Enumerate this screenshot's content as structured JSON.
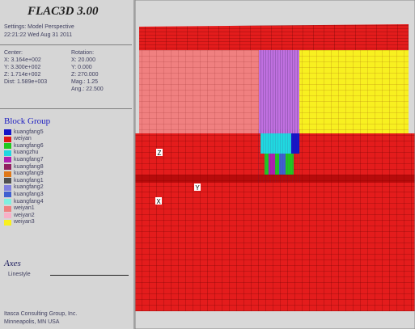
{
  "header": {
    "title": "FLAC3D 3.00",
    "settings": "Settings: Model Perspective",
    "timestamp": "22:21:22 Wed Aug 31 2011"
  },
  "view": {
    "center": {
      "label": "Center:",
      "x": "X: 3.164e+002",
      "y": "Y: 3.300e+002",
      "z": "Z: 1.714e+002",
      "dist": "Dist: 1.589e+003"
    },
    "rotation": {
      "label": "Rotation:",
      "x": "X: 20.000",
      "y": "Y: 0.000",
      "z": "Z: 270.000",
      "mag": "Mag.: 1.25",
      "ang": "Ang.: 22.500"
    }
  },
  "legend": {
    "title": "Block Group",
    "items": [
      {
        "name": "kuangfang5",
        "color": "#1414c8"
      },
      {
        "name": "weiyan",
        "color": "#e01818"
      },
      {
        "name": "kuangfang6",
        "color": "#20c820"
      },
      {
        "name": "kuangzhu",
        "color": "#20d8e0"
      },
      {
        "name": "kuangfang7",
        "color": "#b020b0"
      },
      {
        "name": "kuangfang8",
        "color": "#902060"
      },
      {
        "name": "kuangfang9",
        "color": "#e07818"
      },
      {
        "name": "kuangfang1",
        "color": "#505050"
      },
      {
        "name": "kuangfang2",
        "color": "#8080e0"
      },
      {
        "name": "kuangfang3",
        "color": "#4060d0"
      },
      {
        "name": "kuangfang4",
        "color": "#80f0e0"
      },
      {
        "name": "weiyan1",
        "color": "#f08080"
      },
      {
        "name": "weiyan2",
        "color": "#f8b0c8"
      },
      {
        "name": "weiyan3",
        "color": "#f8f020"
      }
    ]
  },
  "axes": {
    "title": "Axes",
    "linestyle": "Linestyle"
  },
  "footer": {
    "company": "Itasca Consulting Group, Inc.",
    "location": "Minneapolis, MN USA"
  },
  "viewport": {
    "axis_z": "Z",
    "axis_y": "Y",
    "axis_x": "X"
  }
}
